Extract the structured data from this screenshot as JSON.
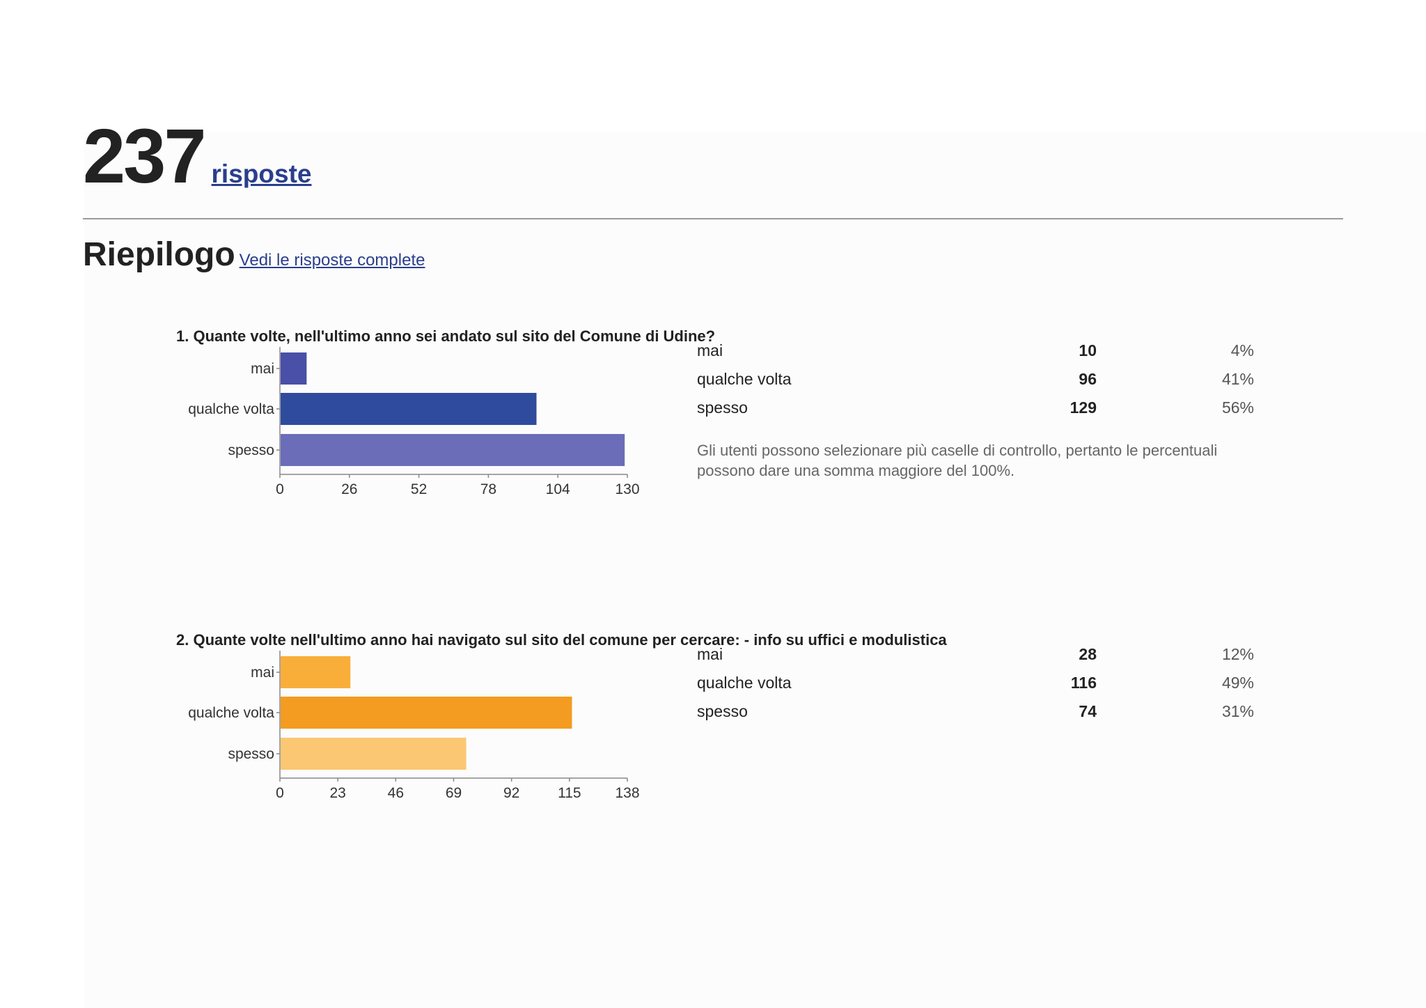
{
  "header": {
    "response_count": "237",
    "responses_link": "risposte"
  },
  "summary": {
    "title": "Riepilogo",
    "full_responses_link": "Vedi le risposte complete"
  },
  "questions": [
    {
      "title": "1. Quante volte, nell'ultimo anno sei andato sul sito del Comune di Udine?",
      "rows": [
        {
          "label": "mai",
          "count": "10",
          "percent": "4%"
        },
        {
          "label": "qualche volta",
          "count": "96",
          "percent": "41%"
        },
        {
          "label": "spesso",
          "count": "129",
          "percent": "56%"
        }
      ],
      "note": "Gli utenti possono selezionare più caselle di controllo, pertanto le percentuali possono dare una somma maggiore del 100%."
    },
    {
      "title": "2. Quante volte nell'ultimo anno hai navigato sul sito del comune per cercare: - info su uffici e modulistica",
      "rows": [
        {
          "label": "mai",
          "count": "28",
          "percent": "12%"
        },
        {
          "label": "qualche volta",
          "count": "116",
          "percent": "49%"
        },
        {
          "label": "spesso",
          "count": "74",
          "percent": "31%"
        }
      ]
    }
  ],
  "chart_data": [
    {
      "type": "bar",
      "orientation": "horizontal",
      "categories": [
        "mai",
        "qualche volta",
        "spesso"
      ],
      "values": [
        10,
        96,
        129
      ],
      "colors": [
        "#4a4fa8",
        "#2f4b9e",
        "#6b6db9"
      ],
      "xlim": [
        0,
        130
      ],
      "xticks": [
        0,
        26,
        52,
        78,
        104,
        130
      ]
    },
    {
      "type": "bar",
      "orientation": "horizontal",
      "categories": [
        "mai",
        "qualche volta",
        "spesso"
      ],
      "values": [
        28,
        116,
        74
      ],
      "colors": [
        "#f9ae3a",
        "#f39c21",
        "#fcc772"
      ],
      "xlim": [
        0,
        138
      ],
      "xticks": [
        0,
        23,
        46,
        69,
        92,
        115,
        138
      ]
    }
  ]
}
